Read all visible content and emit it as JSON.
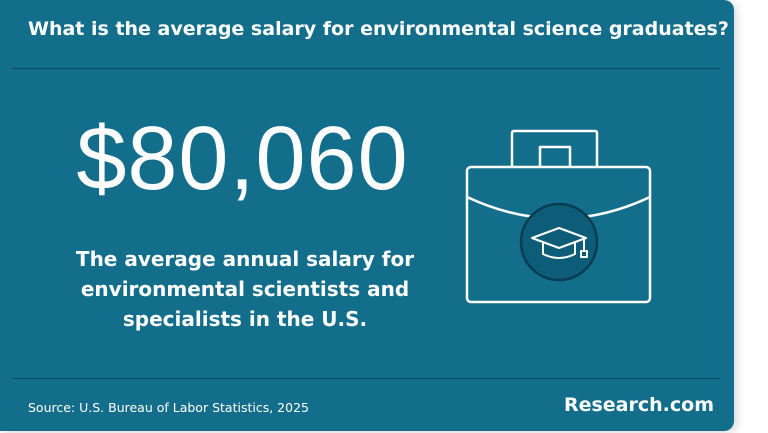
{
  "header": {
    "title": "What is the average salary for environmental science graduates?"
  },
  "stat": {
    "value": "$80,060",
    "description": [
      "The average annual salary for",
      "environmental scientists and",
      "specialists in the U.S."
    ]
  },
  "footer": {
    "source": "Source: U.S. Bureau of Labor Statistics, 2025",
    "brand": "Research.com"
  }
}
